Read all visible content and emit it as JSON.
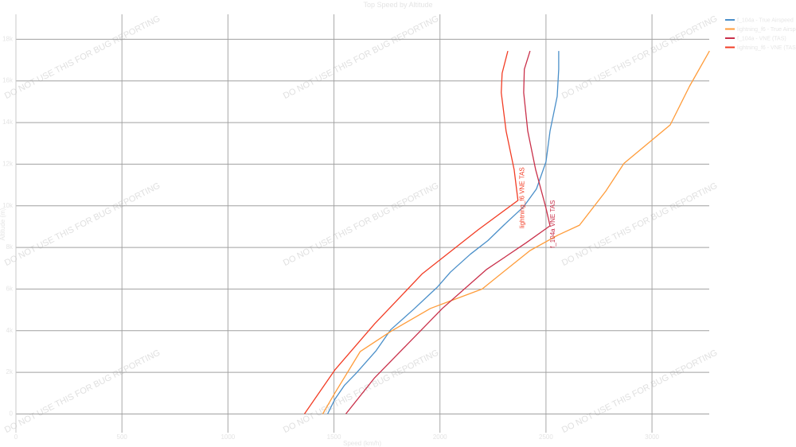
{
  "chart_data": {
    "type": "line",
    "title": "Top Speed by Altitude",
    "xlabel": "Speed (km/h)",
    "ylabel": "Altitude (m)",
    "xlim": [
      0,
      3270
    ],
    "ylim": [
      -900,
      19200
    ],
    "xticks": [
      0,
      500,
      1000,
      1500,
      2000,
      2500,
      3000
    ],
    "xtick_labels": [
      "0",
      "500",
      "1000",
      "1500",
      "2000",
      "2500",
      "3000"
    ],
    "yticks": [
      0,
      2000,
      4000,
      6000,
      8000,
      10000,
      12000,
      14000,
      16000,
      18000
    ],
    "ytick_labels": [
      "0",
      "2k",
      "4k",
      "6k",
      "8k",
      "10k",
      "12k",
      "14k",
      "16k",
      "18k"
    ],
    "grid": true,
    "legend_position": "top-right",
    "series": [
      {
        "name": "f_104a - True Airspeed",
        "color": "#4a8fc9",
        "x": [
          1470,
          1504,
          1549,
          1605,
          1699,
          1767,
          1880,
          1989,
          2049,
          2143,
          2226,
          2301,
          2395,
          2455,
          2500,
          2519,
          2538,
          2553,
          2560,
          2560
        ],
        "y": [
          0,
          700,
          1370,
          1960,
          3040,
          4040,
          5070,
          6110,
          6810,
          7670,
          8330,
          9070,
          9960,
          10810,
          12110,
          13590,
          14520,
          15260,
          16560,
          17440
        ]
      },
      {
        "name": "lightning_f6 - True Airspeed",
        "color": "#ff9c3a",
        "x": [
          1447,
          1504,
          1624,
          1767,
          1955,
          2199,
          2312,
          2425,
          2556,
          2658,
          2782,
          2868,
          3086,
          3177,
          3271
        ],
        "y": [
          0,
          1000,
          3000,
          3960,
          5070,
          6000,
          6930,
          7850,
          8590,
          9070,
          10700,
          12040,
          13890,
          15740,
          17440
        ]
      },
      {
        "name": "f_104a - VNE (TAS)",
        "color": "#c9304a",
        "x": [
          1556,
          1692,
          1842,
          2011,
          2218,
          2406,
          2519,
          2500,
          2451,
          2414,
          2395,
          2398,
          2425
        ],
        "y": [
          0,
          1740,
          3300,
          5070,
          6930,
          8220,
          9040,
          9890,
          11740,
          13590,
          15440,
          16560,
          17440
        ]
      },
      {
        "name": "lightning_f6 - VNE (TAS)",
        "color": "#f23c24",
        "x": [
          1361,
          1504,
          1692,
          1917,
          2180,
          2368,
          2350,
          2312,
          2289,
          2293,
          2320
        ],
        "y": [
          0,
          2110,
          4330,
          6740,
          8850,
          10260,
          11740,
          13590,
          15440,
          16370,
          17440
        ]
      }
    ],
    "annotations": [
      {
        "text": "lightning_f6 VNE TAS",
        "x": 2368,
        "y": 10260,
        "color": "#f23c24"
      },
      {
        "text": "f_104a VNE TAS",
        "x": 2519,
        "y": 9040,
        "color": "#c9304a"
      }
    ]
  },
  "watermark": "DO NOT USE THIS FOR BUG REPORTING"
}
